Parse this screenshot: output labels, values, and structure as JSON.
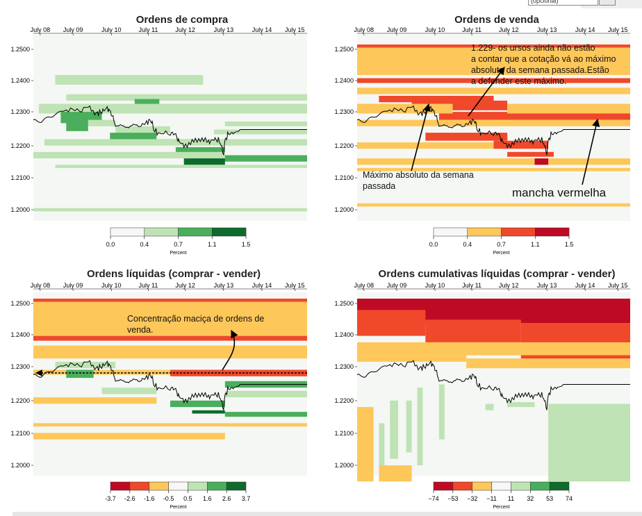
{
  "colors": {
    "bg": "#f4f7f4",
    "greens": [
      "#f7f7f7",
      "#bfe3b4",
      "#4aae5c",
      "#0e6b2c"
    ],
    "reds": [
      "#f7f7f7",
      "#fec75a",
      "#f0482a",
      "#bf0a26"
    ],
    "diverging": [
      "#bf0a26",
      "#f0482a",
      "#fec75a",
      "#f7f7f7",
      "#bfe3b4",
      "#4aae5c",
      "#0e6b2c"
    ]
  },
  "top_ui": {
    "input_text": "(opcional)"
  },
  "chart_data": [
    {
      "type": "heatmap",
      "title": "Ordens de compra",
      "x_ticks": [
        "July 08",
        "July 09",
        "July 10",
        "July 11",
        "July 12",
        "July 13",
        "July 14",
        "July 15"
      ],
      "y_ticks": [
        "1.2500",
        "1.2400",
        "1.2300",
        "1.2200",
        "1.2100",
        "1.2000"
      ],
      "legend": {
        "breaks": [
          "0.0",
          "0.4",
          "0.7",
          "1.1",
          "1.5"
        ],
        "label": "Percent",
        "palette": "greens"
      }
    },
    {
      "type": "heatmap",
      "title": "Ordens de venda",
      "x_ticks": [
        "July 08",
        "July 09",
        "July 10",
        "July 11",
        "July 12",
        "July 13",
        "July 14",
        "July 15"
      ],
      "y_ticks": [
        "1.2500",
        "1.2400",
        "1.2300",
        "1.2200",
        "1.2100",
        "1.2000"
      ],
      "legend": {
        "breaks": [
          "0.0",
          "0.4",
          "0.7",
          "1.1",
          "1.5"
        ],
        "label": "Percent",
        "palette": "reds"
      },
      "annotations": [
        {
          "lines": [
            "1.229- os ursos ainda não estão",
            "a contar que a cotação vá ao máximo",
            "absoluto da semana passada.Estão",
            "a defender este máximo."
          ]
        },
        {
          "lines": [
            "Máximo absoluto da semana",
            "passada"
          ]
        },
        {
          "lines": [
            "mancha vermelha"
          ]
        }
      ]
    },
    {
      "type": "heatmap",
      "title": "Ordens líquidas (comprar - vender)",
      "x_ticks": [
        "July 08",
        "July 09",
        "July 10",
        "July 11",
        "July 12",
        "July 13",
        "July 14",
        "July 15"
      ],
      "y_ticks": [
        "1.2500",
        "1.2400",
        "1.2300",
        "1.2200",
        "1.2100",
        "1.2000"
      ],
      "legend": {
        "breaks": [
          "-3.7",
          "-2.6",
          "-1.6",
          "-0.5",
          "0.5",
          "1.6",
          "2.6",
          "3.7"
        ],
        "label": "Percent",
        "palette": "diverging"
      },
      "annotations": [
        {
          "lines": [
            "Concentração maciça de ordens de",
            "venda."
          ]
        }
      ]
    },
    {
      "type": "heatmap",
      "title": "Ordens cumulativas líquidas (comprar - vender)",
      "x_ticks": [
        "July 08",
        "July 09",
        "July 10",
        "July 11",
        "July 12",
        "July 13",
        "July 14",
        "July 15"
      ],
      "y_ticks": [
        "1.2500",
        "1.2400",
        "1.2300",
        "1.2200",
        "1.2100",
        "1.2000"
      ],
      "legend": {
        "breaks": [
          "−74",
          "−53",
          "−32",
          "−11",
          "11",
          "32",
          "53",
          "74"
        ],
        "label": "Percent",
        "palette": "diverging"
      }
    }
  ]
}
